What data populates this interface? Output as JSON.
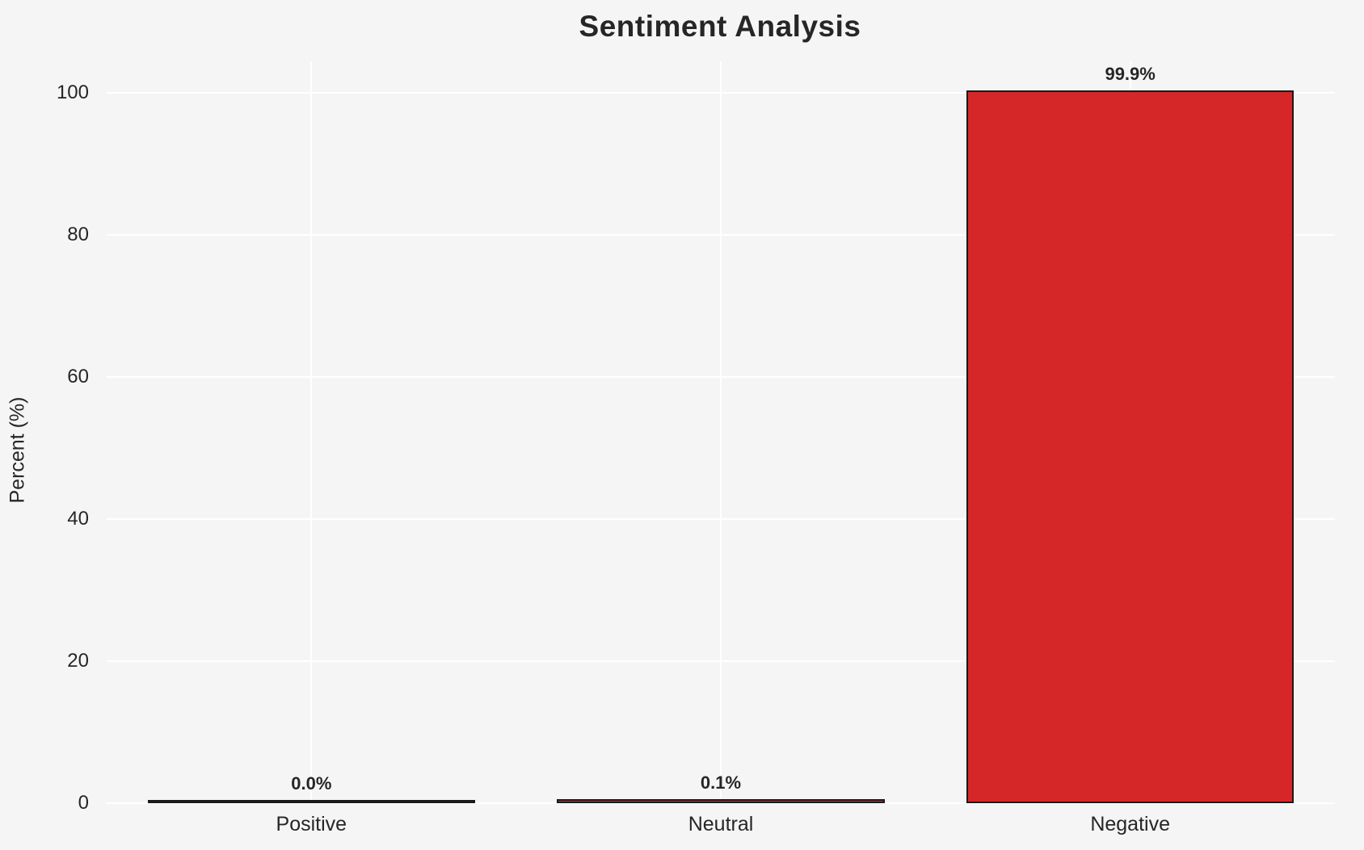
{
  "chart_data": {
    "type": "bar",
    "title": "Sentiment Analysis",
    "xlabel": "",
    "ylabel": "Percent (%)",
    "categories": [
      "Positive",
      "Neutral",
      "Negative"
    ],
    "values": [
      0.0,
      0.1,
      99.9
    ],
    "value_labels": [
      "0.0%",
      "0.1%",
      "99.9%"
    ],
    "yticks": [
      0,
      20,
      40,
      60,
      80,
      100
    ],
    "ylim": [
      0,
      100
    ],
    "grid": true,
    "legend": false,
    "colors": {
      "bar_fill": "#d62728",
      "bar_edge": "#1a1a1a",
      "background": "#f5f5f6",
      "gridline": "#ffffff",
      "text": "#262626"
    }
  }
}
